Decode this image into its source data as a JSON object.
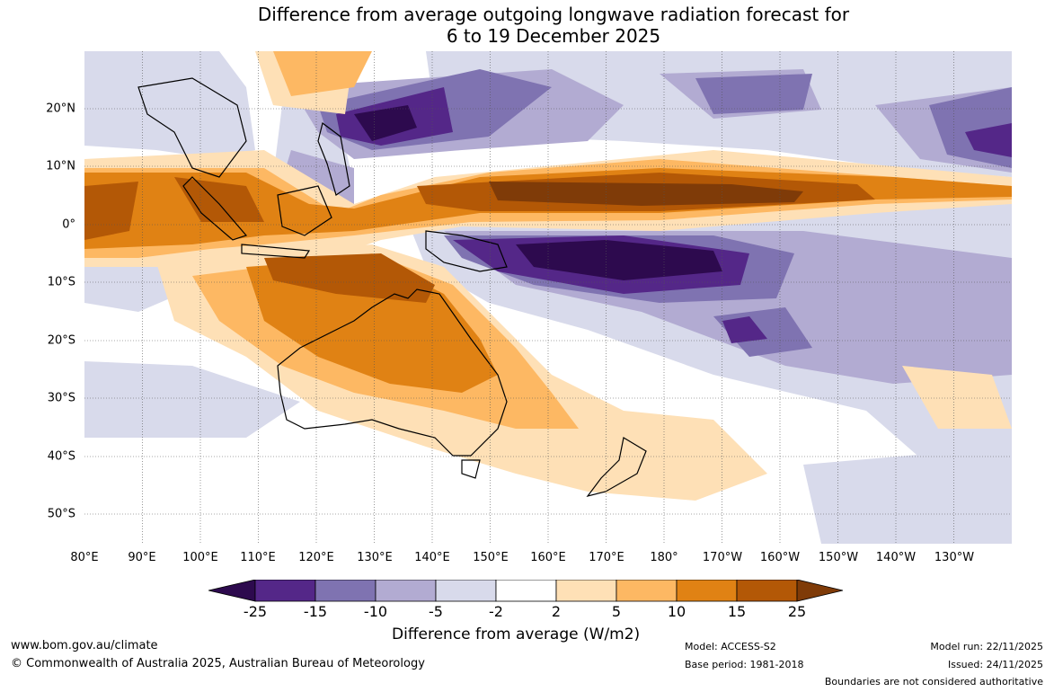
{
  "title_line1": "Difference from average outgoing longwave radiation forecast for",
  "title_line2": "6 to 19 December 2025",
  "lon_labels": [
    "80°E",
    "90°E",
    "100°E",
    "110°E",
    "120°E",
    "130°E",
    "140°E",
    "150°E",
    "160°E",
    "170°E",
    "180°",
    "170°W",
    "160°W",
    "150°W",
    "140°W",
    "130°W"
  ],
  "lat_labels": [
    "20°N",
    "10°N",
    "0°",
    "10°S",
    "20°S",
    "30°S",
    "40°S",
    "50°S"
  ],
  "colorbar": {
    "ticks": [
      "-25",
      "-15",
      "-10",
      "-5",
      "-2",
      "2",
      "5",
      "10",
      "15",
      "25"
    ],
    "colors": [
      "#2d0a4e",
      "#542788",
      "#7f73b1",
      "#b2abd2",
      "#d8daeb",
      "#ffffff",
      "#fee0b6",
      "#fdb863",
      "#e08214",
      "#b35806",
      "#7f3b08"
    ],
    "label": "Difference from average (W/m2)"
  },
  "footer": {
    "website": "www.bom.gov.au/climate",
    "copyright": "© Commonwealth of Australia 2025, Australian Bureau of Meteorology",
    "model": "Model: ACCESS-S2",
    "base_period": "Base period: 1981-2018",
    "model_run": "Model run: 22/11/2025",
    "issued": "Issued: 24/11/2025",
    "disclaimer": "Boundaries are not considered authoritative"
  }
}
